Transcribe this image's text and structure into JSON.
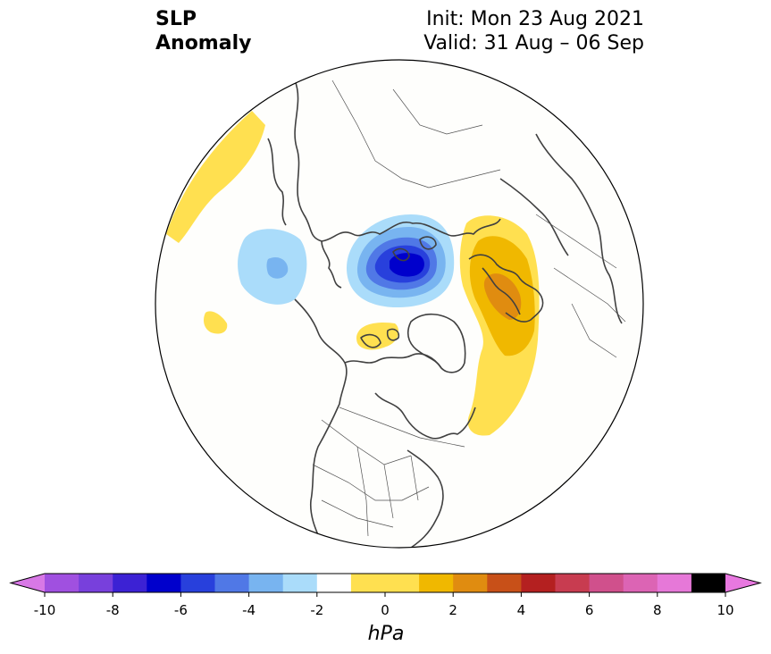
{
  "title": {
    "line1": "SLP",
    "line2": "Anomaly",
    "init": "Init: Mon 23 Aug 2021",
    "valid": "Valid: 31 Aug – 06 Sep"
  },
  "map": {
    "projection": "north-polar-stereographic",
    "region": "Northern Hemisphere (Arctic, North America, North Atlantic, Europe, Siberia)",
    "anomaly_features": [
      {
        "label": "negative anomaly centered near the North Pole",
        "min_hpa": -6
      },
      {
        "label": "negative anomaly over East Siberia / Bering region",
        "min_hpa": -3
      },
      {
        "label": "positive anomaly over northern Europe / Scandinavia",
        "max_hpa": 4
      },
      {
        "label": "positive anomaly over North Atlantic",
        "max_hpa": 3
      },
      {
        "label": "positive anomaly over North Pacific",
        "max_hpa": 2
      },
      {
        "label": "small positive anomaly north of Greenland",
        "max_hpa": 2
      }
    ]
  },
  "colorbar": {
    "unit": "hPa",
    "ticks": [
      "-10",
      "-8",
      "-6",
      "-4",
      "-2",
      "0",
      "2",
      "4",
      "6",
      "8",
      "10"
    ],
    "levels": [
      -10,
      -9,
      -8,
      -7,
      -6,
      -5,
      -4,
      -3,
      -2,
      -1,
      1,
      2,
      3,
      4,
      5,
      6,
      7,
      8,
      9,
      10
    ],
    "colors": [
      "#a050e0",
      "#7840dc",
      "#3c22d4",
      "#0000cc",
      "#2840dc",
      "#5078e6",
      "#78b4f0",
      "#aadcfa",
      "#ffffff",
      "#ffe050",
      "#f0b800",
      "#e08c10",
      "#c85018",
      "#b42020",
      "#c83c50",
      "#d0508c",
      "#dc64b4",
      "#e678d8"
    ],
    "extend_low_color": "#d878e6",
    "extend_high_color": "#e878e0"
  },
  "colors": {
    "land_outline": "#404040",
    "circle_outline": "#000000"
  }
}
